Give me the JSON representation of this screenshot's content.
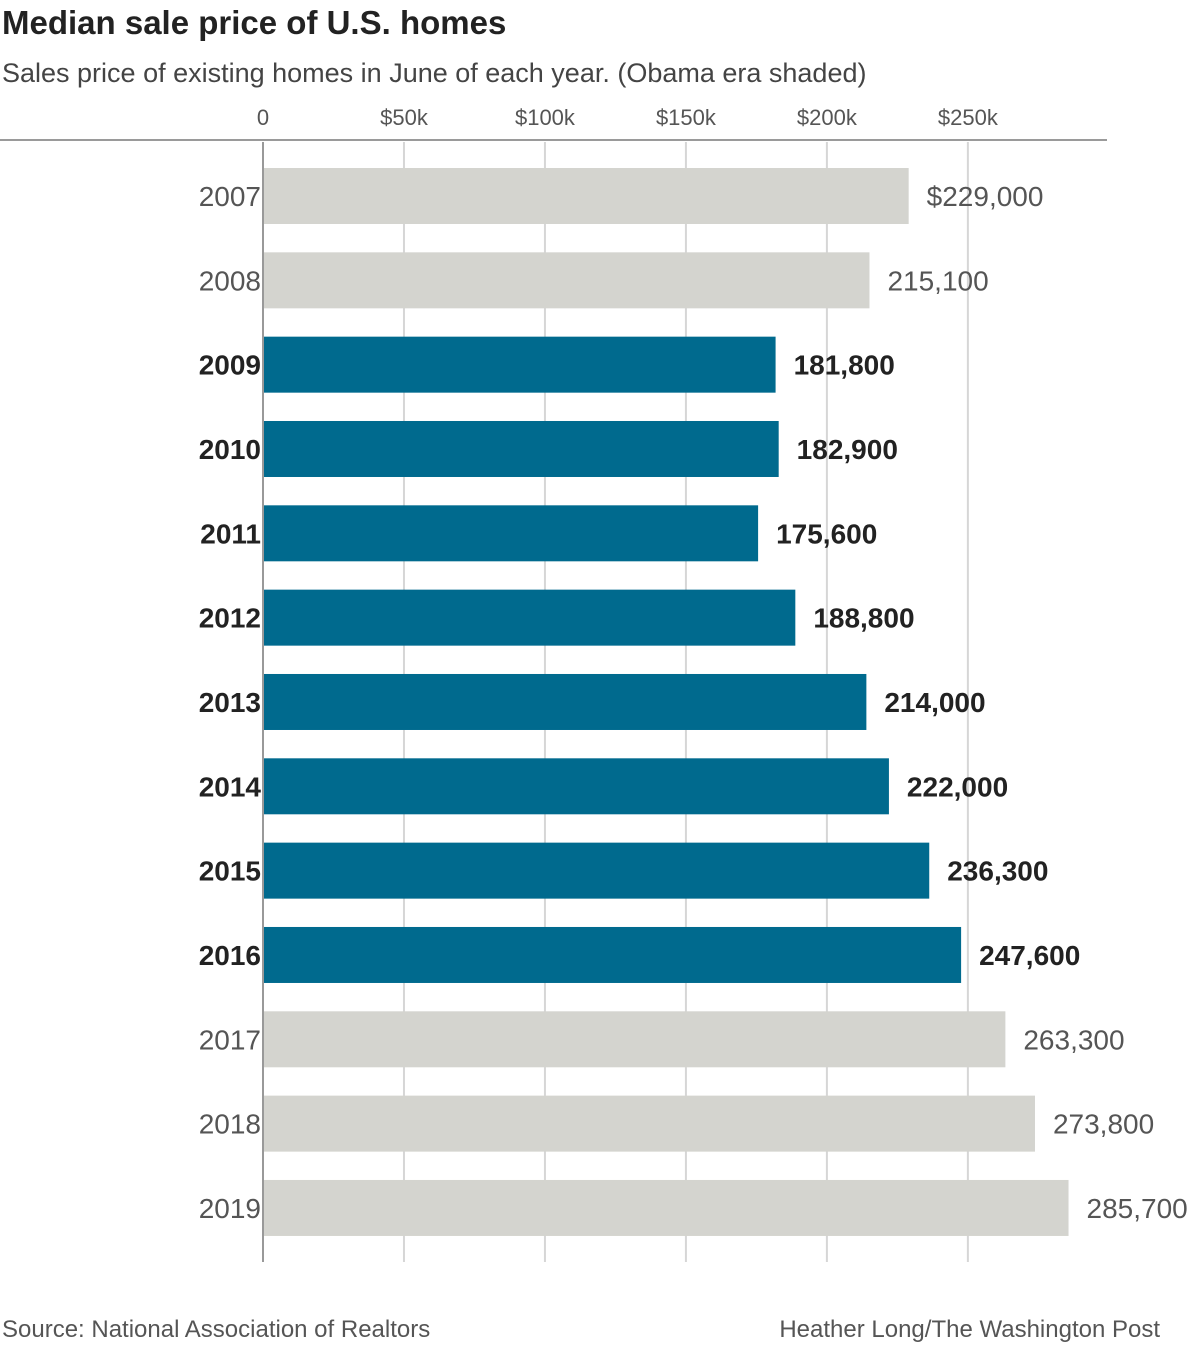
{
  "chart_data": {
    "type": "bar",
    "orientation": "horizontal",
    "title": "Median sale price of U.S. homes",
    "subtitle": "Sales price of existing homes in June of each year. (Obama era shaded)",
    "categories": [
      "2007",
      "2008",
      "2009",
      "2010",
      "2011",
      "2012",
      "2013",
      "2014",
      "2015",
      "2016",
      "2017",
      "2018",
      "2019"
    ],
    "values": [
      229000,
      215100,
      181800,
      182900,
      175600,
      188800,
      214000,
      222000,
      236300,
      247600,
      263300,
      273800,
      285700
    ],
    "value_labels": [
      "$229,000",
      "215,100",
      "181,800",
      "182,900",
      "175,600",
      "188,800",
      "214,000",
      "222,000",
      "236,300",
      "247,600",
      "263,300",
      "273,800",
      "285,700"
    ],
    "highlighted": [
      false,
      false,
      true,
      true,
      true,
      true,
      true,
      true,
      true,
      true,
      false,
      false,
      false
    ],
    "highlight_meaning": "Obama era",
    "x_ticks": [
      0,
      50000,
      100000,
      150000,
      200000,
      250000
    ],
    "x_tick_labels": [
      "0",
      "$50k",
      "$100k",
      "$150k",
      "$200k",
      "$250k"
    ],
    "xlim": [
      0,
      300000
    ],
    "grid": true,
    "colors": {
      "highlight": "#006a8e",
      "normal": "#d4d4cf",
      "grid": "#d6d6d6",
      "axis": "#999999"
    }
  },
  "footer": {
    "source": "Source: National Association of Realtors",
    "credit": "Heather Long/The Washington Post"
  }
}
